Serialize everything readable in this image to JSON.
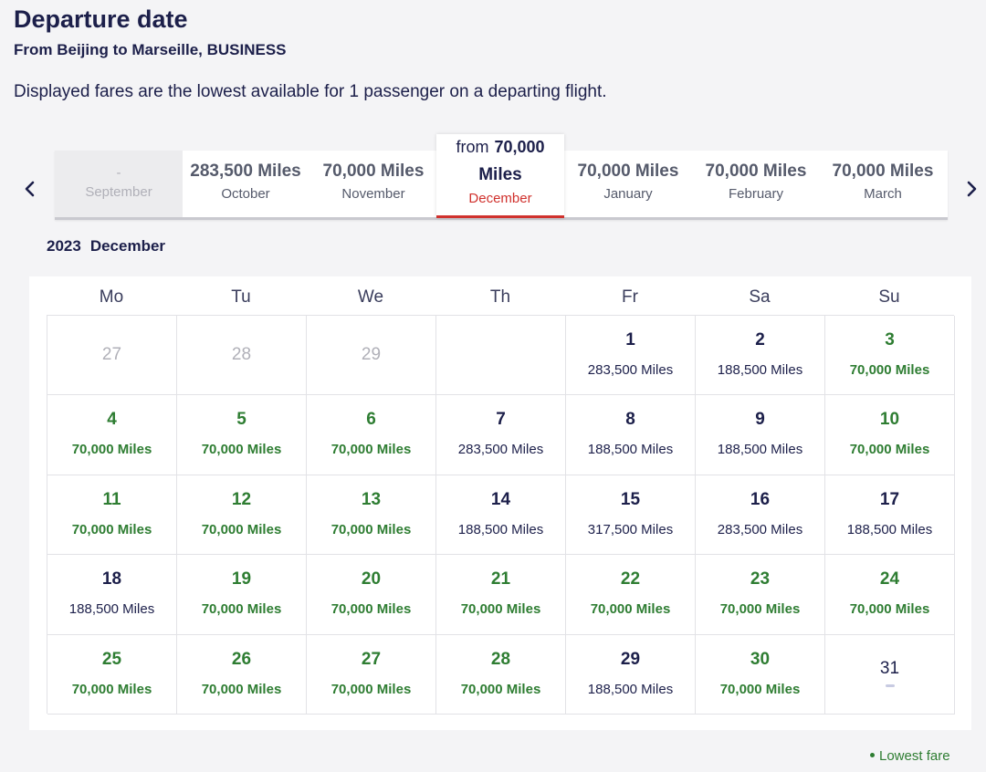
{
  "header": {
    "title": "Departure date",
    "route": "From Beijing to Marseille, BUSINESS",
    "disclaimer": "Displayed fares are the lowest available for 1 passenger on a departing flight."
  },
  "month_tabs": [
    {
      "miles": "-",
      "month": "September",
      "state": "disabled"
    },
    {
      "miles": "283,500 Miles",
      "month": "October",
      "state": "normal"
    },
    {
      "miles": "70,000 Miles",
      "month": "November",
      "state": "normal"
    },
    {
      "from_label": "from",
      "amount": "70,000",
      "unit": "Miles",
      "month": "December",
      "state": "active"
    },
    {
      "miles": "70,000 Miles",
      "month": "January",
      "state": "normal"
    },
    {
      "miles": "70,000 Miles",
      "month": "February",
      "state": "normal"
    },
    {
      "miles": "70,000 Miles",
      "month": "March",
      "state": "normal"
    }
  ],
  "calendar": {
    "year": "2023",
    "month": "December",
    "weekdays": [
      "Mo",
      "Tu",
      "We",
      "Th",
      "Fr",
      "Sa",
      "Su"
    ],
    "weeks": [
      [
        {
          "day": "27",
          "fare": "",
          "type": "outside"
        },
        {
          "day": "28",
          "fare": "",
          "type": "outside"
        },
        {
          "day": "29",
          "fare": "",
          "type": "outside"
        },
        {
          "day": "",
          "fare": "",
          "type": "empty"
        },
        {
          "day": "1",
          "fare": "283,500 Miles",
          "type": "normal"
        },
        {
          "day": "2",
          "fare": "188,500 Miles",
          "type": "normal"
        },
        {
          "day": "3",
          "fare": "70,000 Miles",
          "type": "lowest"
        }
      ],
      [
        {
          "day": "4",
          "fare": "70,000 Miles",
          "type": "lowest"
        },
        {
          "day": "5",
          "fare": "70,000 Miles",
          "type": "lowest"
        },
        {
          "day": "6",
          "fare": "70,000 Miles",
          "type": "lowest"
        },
        {
          "day": "7",
          "fare": "283,500 Miles",
          "type": "normal"
        },
        {
          "day": "8",
          "fare": "188,500 Miles",
          "type": "normal"
        },
        {
          "day": "9",
          "fare": "188,500 Miles",
          "type": "normal"
        },
        {
          "day": "10",
          "fare": "70,000 Miles",
          "type": "lowest"
        }
      ],
      [
        {
          "day": "11",
          "fare": "70,000 Miles",
          "type": "lowest"
        },
        {
          "day": "12",
          "fare": "70,000 Miles",
          "type": "lowest"
        },
        {
          "day": "13",
          "fare": "70,000 Miles",
          "type": "lowest"
        },
        {
          "day": "14",
          "fare": "188,500 Miles",
          "type": "normal"
        },
        {
          "day": "15",
          "fare": "317,500 Miles",
          "type": "normal"
        },
        {
          "day": "16",
          "fare": "283,500 Miles",
          "type": "normal"
        },
        {
          "day": "17",
          "fare": "188,500 Miles",
          "type": "normal"
        }
      ],
      [
        {
          "day": "18",
          "fare": "188,500 Miles",
          "type": "normal"
        },
        {
          "day": "19",
          "fare": "70,000 Miles",
          "type": "lowest"
        },
        {
          "day": "20",
          "fare": "70,000 Miles",
          "type": "lowest"
        },
        {
          "day": "21",
          "fare": "70,000 Miles",
          "type": "lowest"
        },
        {
          "day": "22",
          "fare": "70,000 Miles",
          "type": "lowest"
        },
        {
          "day": "23",
          "fare": "70,000 Miles",
          "type": "lowest"
        },
        {
          "day": "24",
          "fare": "70,000 Miles",
          "type": "lowest"
        }
      ],
      [
        {
          "day": "25",
          "fare": "70,000 Miles",
          "type": "lowest"
        },
        {
          "day": "26",
          "fare": "70,000 Miles",
          "type": "lowest"
        },
        {
          "day": "27",
          "fare": "70,000 Miles",
          "type": "lowest"
        },
        {
          "day": "28",
          "fare": "70,000 Miles",
          "type": "lowest"
        },
        {
          "day": "29",
          "fare": "188,500 Miles",
          "type": "normal"
        },
        {
          "day": "30",
          "fare": "70,000 Miles",
          "type": "lowest"
        },
        {
          "day": "31",
          "fare": "",
          "type": "nofare"
        }
      ]
    ]
  },
  "legend": {
    "label": "Lowest fare"
  },
  "colors": {
    "lowest": "#2e7d32",
    "accent": "#d0312d",
    "text": "#1c1f4a"
  },
  "icons": {
    "prev": "chevron-left-icon",
    "next": "chevron-right-icon",
    "legend": "dot-icon"
  }
}
